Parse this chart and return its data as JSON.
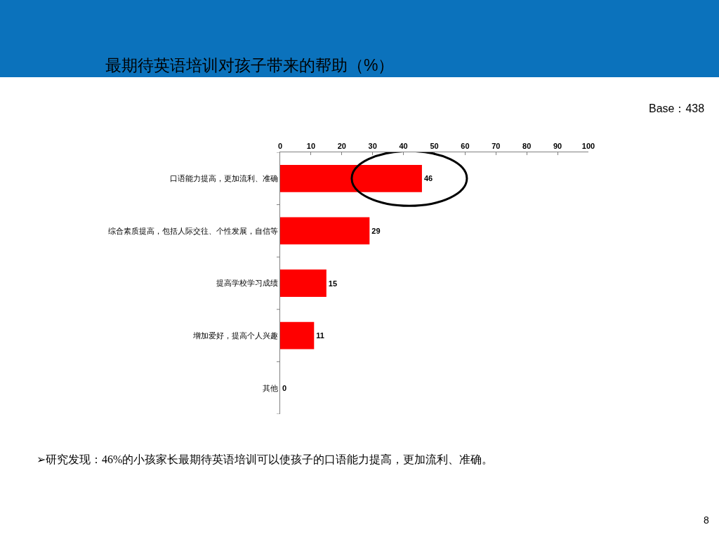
{
  "chart_data": {
    "type": "bar",
    "orientation": "horizontal",
    "title": "最期待英语培训对孩子带来的帮助（%）",
    "categories": [
      "口语能力提高，更加流利、准确",
      "综合素质提高，包括人际交往、个性发展，自信等",
      "提高学校学习成绩",
      "增加爱好，提高个人兴趣",
      "其他"
    ],
    "values": [
      46,
      29,
      15,
      11,
      0
    ],
    "color": "#ff0000",
    "xlim": [
      0,
      100
    ],
    "xticks": [
      0,
      10,
      20,
      30,
      40,
      50,
      60,
      70,
      80,
      90,
      100
    ],
    "data_labels": true,
    "annotations": [
      "Base：438",
      "➢研究发现：46%的小孩家长最期待英语培训可以使孩子的口语能力提高，更加流利、准确。",
      "8"
    ]
  }
}
